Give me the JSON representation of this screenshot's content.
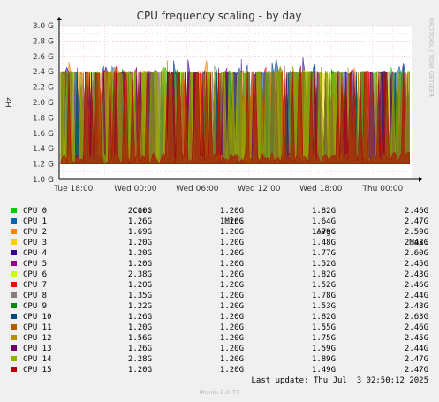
{
  "chart_data": {
    "type": "area",
    "title": "CPU frequency scaling - by day",
    "ylabel": "Hz",
    "side_label": "RRDTOOL / TOBI OETIKER",
    "y_ticks": [
      "1.0 G",
      "1.2 G",
      "1.4 G",
      "1.6 G",
      "1.8 G",
      "2.0 G",
      "2.2 G",
      "2.4 G",
      "2.6 G",
      "2.8 G",
      "3.0 G"
    ],
    "ylim": [
      1.0,
      3.0
    ],
    "x_ticks": [
      "Tue 18:00",
      "Wed 00:00",
      "Wed 06:00",
      "Wed 12:00",
      "Wed 18:00",
      "Thu 00:00"
    ],
    "x_tick_hours": [
      18,
      24,
      30,
      36,
      42,
      48
    ],
    "x_range_hours": [
      16.6,
      50.8
    ],
    "grid": true,
    "series": [
      {
        "name": "CPU 0",
        "color": "#00cc00",
        "cur": "2.00G",
        "min": "1.20G",
        "avg": "1.82G",
        "max": "2.46G"
      },
      {
        "name": "CPU 1",
        "color": "#0066b3",
        "cur": "1.26G",
        "min": "1.20G",
        "avg": "1.64G",
        "max": "2.47G"
      },
      {
        "name": "CPU 2",
        "color": "#ff8000",
        "cur": "1.69G",
        "min": "1.20G",
        "avg": "1.79G",
        "max": "2.59G"
      },
      {
        "name": "CPU 3",
        "color": "#ffcc00",
        "cur": "1.20G",
        "min": "1.20G",
        "avg": "1.48G",
        "max": "2.43G"
      },
      {
        "name": "CPU 4",
        "color": "#330099",
        "cur": "1.20G",
        "min": "1.20G",
        "avg": "1.77G",
        "max": "2.60G"
      },
      {
        "name": "CPU 5",
        "color": "#990099",
        "cur": "1.20G",
        "min": "1.20G",
        "avg": "1.52G",
        "max": "2.45G"
      },
      {
        "name": "CPU 6",
        "color": "#ccff00",
        "cur": "2.38G",
        "min": "1.20G",
        "avg": "1.82G",
        "max": "2.43G"
      },
      {
        "name": "CPU 7",
        "color": "#ff0000",
        "cur": "1.20G",
        "min": "1.20G",
        "avg": "1.52G",
        "max": "2.46G"
      },
      {
        "name": "CPU 8",
        "color": "#808080",
        "cur": "1.35G",
        "min": "1.20G",
        "avg": "1.78G",
        "max": "2.44G"
      },
      {
        "name": "CPU 9",
        "color": "#008f00",
        "cur": "1.22G",
        "min": "1.20G",
        "avg": "1.53G",
        "max": "2.43G"
      },
      {
        "name": "CPU 10",
        "color": "#00487d",
        "cur": "1.26G",
        "min": "1.20G",
        "avg": "1.82G",
        "max": "2.63G"
      },
      {
        "name": "CPU 11",
        "color": "#b35a00",
        "cur": "1.20G",
        "min": "1.20G",
        "avg": "1.55G",
        "max": "2.46G"
      },
      {
        "name": "CPU 12",
        "color": "#b38f00",
        "cur": "1.56G",
        "min": "1.20G",
        "avg": "1.75G",
        "max": "2.45G"
      },
      {
        "name": "CPU 13",
        "color": "#6b006b",
        "cur": "1.26G",
        "min": "1.20G",
        "avg": "1.59G",
        "max": "2.44G"
      },
      {
        "name": "CPU 14",
        "color": "#8fb300",
        "cur": "2.28G",
        "min": "1.20G",
        "avg": "1.89G",
        "max": "2.47G"
      },
      {
        "name": "CPU 15",
        "color": "#b30000",
        "cur": "1.20G",
        "min": "1.20G",
        "avg": "1.49G",
        "max": "2.47G"
      }
    ],
    "columns": [
      "Cur:",
      "Min:",
      "Avg:",
      "Max:"
    ]
  },
  "last_update_label": "Last update:",
  "last_update_value": "Thu Jul  3 02:50:12 2025",
  "footer": "Munin 2.0.75"
}
